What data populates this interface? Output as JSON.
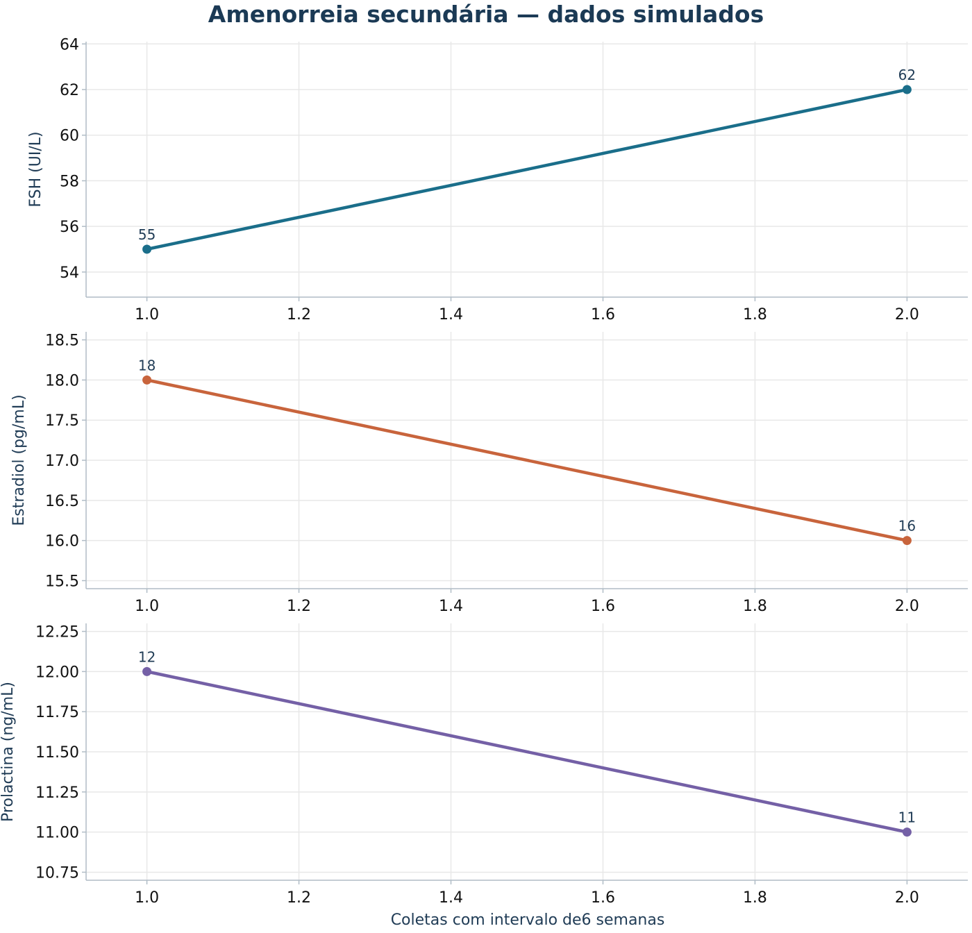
{
  "title": "Amenorreia secundária — dados simulados",
  "xlabel": "Coletas com intervalo de6 semanas",
  "colors": {
    "title": "#1b3a55",
    "spine": "#b0bcc6",
    "grid": "#e8e8e8"
  },
  "chart_data": [
    {
      "type": "line",
      "ylabel": "FSH (UI/L)",
      "color": "#1a6e8a",
      "x": [
        1.0,
        2.0
      ],
      "values": [
        55,
        62
      ],
      "data_labels": [
        "55",
        "62"
      ],
      "xlim": [
        0.92,
        2.08
      ],
      "ylim": [
        52.9,
        64.1
      ],
      "xticks": [
        1.0,
        1.2,
        1.4,
        1.6,
        1.8,
        2.0
      ],
      "xtick_labels": [
        "1.0",
        "1.2",
        "1.4",
        "1.6",
        "1.8",
        "2.0"
      ],
      "yticks": [
        54,
        56,
        58,
        60,
        62,
        64
      ],
      "ytick_labels": [
        "54",
        "56",
        "58",
        "60",
        "62",
        "64"
      ],
      "grid": true
    },
    {
      "type": "line",
      "ylabel": "Estradiol (pg/mL)",
      "color": "#c8643c",
      "x": [
        1.0,
        2.0
      ],
      "values": [
        18,
        16
      ],
      "data_labels": [
        "18",
        "16"
      ],
      "xlim": [
        0.92,
        2.08
      ],
      "ylim": [
        15.4,
        18.6
      ],
      "xticks": [
        1.0,
        1.2,
        1.4,
        1.6,
        1.8,
        2.0
      ],
      "xtick_labels": [
        "1.0",
        "1.2",
        "1.4",
        "1.6",
        "1.8",
        "2.0"
      ],
      "yticks": [
        15.5,
        16.0,
        16.5,
        17.0,
        17.5,
        18.0,
        18.5
      ],
      "ytick_labels": [
        "15.5",
        "16.0",
        "16.5",
        "17.0",
        "17.5",
        "18.0",
        "18.5"
      ],
      "grid": true
    },
    {
      "type": "line",
      "ylabel": "Prolactina (ng/mL)",
      "color": "#7460a6",
      "x": [
        1.0,
        2.0
      ],
      "values": [
        12,
        11
      ],
      "data_labels": [
        "12",
        "11"
      ],
      "xlim": [
        0.92,
        2.08
      ],
      "ylim": [
        10.7,
        12.3
      ],
      "xticks": [
        1.0,
        1.2,
        1.4,
        1.6,
        1.8,
        2.0
      ],
      "xtick_labels": [
        "1.0",
        "1.2",
        "1.4",
        "1.6",
        "1.8",
        "2.0"
      ],
      "yticks": [
        10.75,
        11.0,
        11.25,
        11.5,
        11.75,
        12.0,
        12.25
      ],
      "ytick_labels": [
        "10.75",
        "11.00",
        "11.25",
        "11.50",
        "11.75",
        "12.00",
        "12.25"
      ],
      "grid": true
    }
  ]
}
